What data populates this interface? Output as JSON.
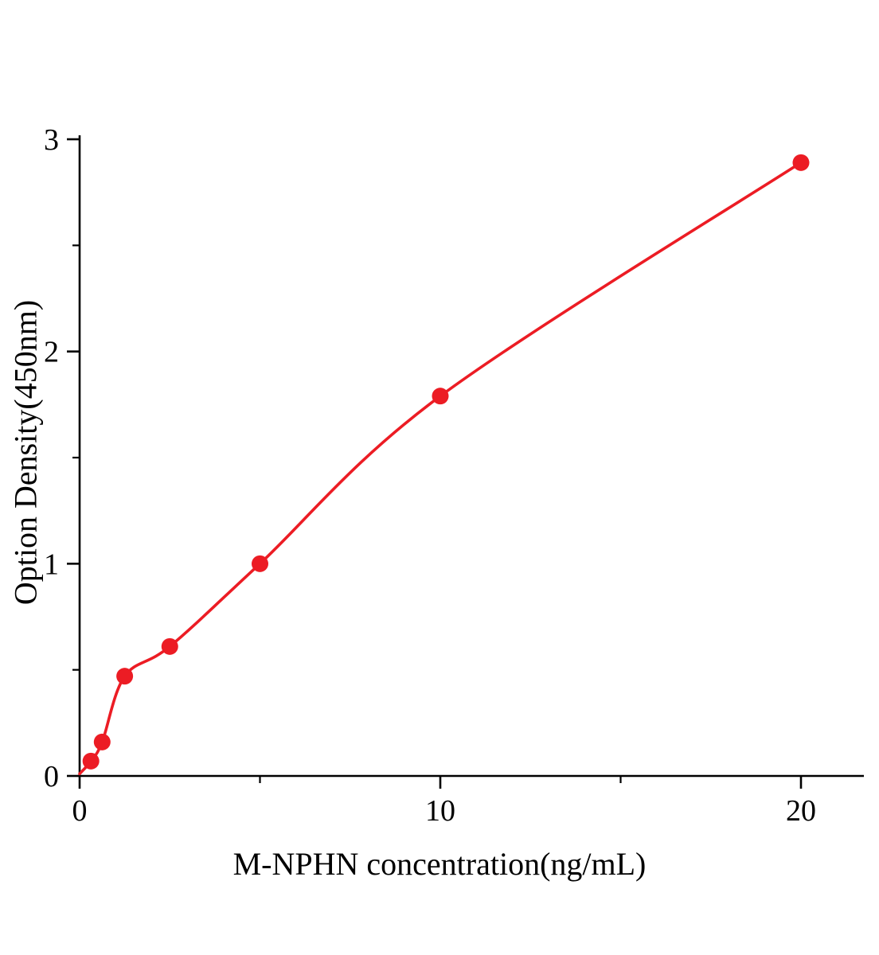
{
  "chart_data": {
    "type": "scatter",
    "title": "",
    "xlabel": "M-NPHN concentration(ng/mL)",
    "ylabel": "Option Density(450nm)",
    "x": [
      0.313,
      0.625,
      1.25,
      2.5,
      5,
      10,
      20
    ],
    "y": [
      0.07,
      0.16,
      0.47,
      0.61,
      1.0,
      1.79,
      2.89
    ],
    "curve_start": [
      0,
      0.01
    ],
    "xlim": [
      0,
      21.7
    ],
    "ylim": [
      0,
      3
    ],
    "x_ticks": [
      0,
      10,
      20
    ],
    "x_tick_labels": [
      "0",
      "10",
      "20"
    ],
    "x_minor_ticks": [
      5,
      15
    ],
    "y_ticks": [
      0,
      1,
      2,
      3
    ],
    "y_tick_labels": [
      "0",
      "1",
      "2",
      "3"
    ],
    "y_minor_ticks": [
      0.5,
      1.5,
      2.5
    ],
    "grid": "off",
    "legend": "none",
    "marker_color": "#ec1c24",
    "line_color": "#ec1c24",
    "axis_color": "#000000"
  }
}
